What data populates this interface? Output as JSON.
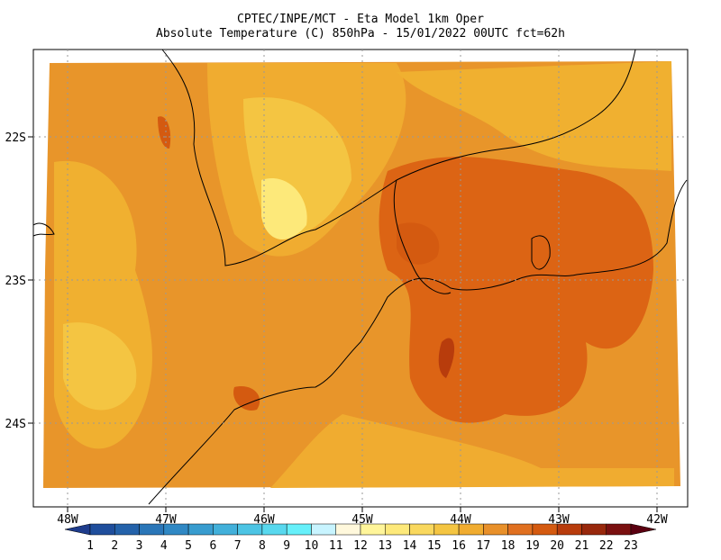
{
  "header": {
    "line1": "CPTEC/INPE/MCT -  Eta Model 1km Oper",
    "line2": "Absolute Temperature (C) 850hPa - 15/01/2022 00UTC fct=62h"
  },
  "map": {
    "lon_ticks": [
      "48W",
      "47W",
      "46W",
      "45W",
      "44W",
      "43W",
      "42W"
    ],
    "lat_ticks": [
      "22S",
      "23S",
      "24S"
    ]
  },
  "colorbar": {
    "levels": [
      1,
      2,
      3,
      4,
      5,
      6,
      7,
      8,
      9,
      10,
      11,
      12,
      13,
      14,
      15,
      16,
      17,
      18,
      19,
      20,
      21,
      22,
      23
    ],
    "colors": [
      "#1e3c8c",
      "#1f4e9c",
      "#2462aa",
      "#2a76b8",
      "#3088c4",
      "#389ccf",
      "#42b0da",
      "#4cc4e4",
      "#58d8ee",
      "#66f0fa",
      "#c8f4ff",
      "#fff8dc",
      "#fff59a",
      "#fde97a",
      "#f9d85e",
      "#f4c542",
      "#f0ac30",
      "#e8902a",
      "#e07020",
      "#d45a10",
      "#b83c0c",
      "#98280c",
      "#7a1010",
      "#5a0010"
    ]
  }
}
